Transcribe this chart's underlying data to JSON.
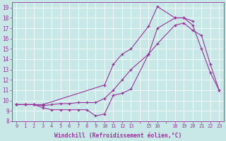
{
  "xlabel": "Windchill (Refroidissement éolien,°C)",
  "bg_color": "#c8e8e8",
  "line_color": "#993399",
  "xlim": [
    -0.5,
    23.5
  ],
  "ylim": [
    8.0,
    19.5
  ],
  "xtick_labels": [
    "0",
    "1",
    "2",
    "3",
    "4",
    "5",
    "6",
    "7",
    "8",
    "9",
    "10",
    "11",
    "12",
    "13",
    "",
    "15",
    "16",
    "",
    "18",
    "19",
    "20",
    "21",
    "22",
    "23"
  ],
  "yticks": [
    8,
    9,
    10,
    11,
    12,
    13,
    14,
    15,
    16,
    17,
    18,
    19
  ],
  "series": [
    {
      "x": [
        0,
        1,
        2,
        3,
        4,
        5,
        6,
        7,
        8,
        9,
        10,
        11,
        12,
        13,
        15,
        16,
        18,
        19,
        20,
        21,
        22,
        23
      ],
      "y": [
        9.6,
        9.6,
        9.6,
        9.3,
        9.1,
        9.1,
        9.1,
        9.1,
        9.1,
        8.5,
        8.7,
        10.5,
        10.7,
        11.1,
        14.5,
        17.0,
        18.0,
        18.0,
        17.3,
        15.0,
        12.7,
        11.0
      ]
    },
    {
      "x": [
        0,
        1,
        2,
        3,
        4,
        5,
        6,
        7,
        8,
        9,
        10,
        11,
        12,
        13,
        15,
        16,
        18,
        19,
        20,
        21,
        22,
        23
      ],
      "y": [
        9.6,
        9.6,
        9.6,
        9.5,
        9.6,
        9.7,
        9.7,
        9.8,
        9.8,
        9.8,
        10.2,
        11.0,
        12.0,
        13.0,
        14.5,
        15.5,
        17.3,
        17.5,
        16.8,
        16.3,
        13.5,
        11.0
      ]
    },
    {
      "x": [
        0,
        1,
        2,
        3,
        10,
        11,
        12,
        13,
        15,
        16,
        18,
        19,
        20
      ],
      "y": [
        9.6,
        9.6,
        9.6,
        9.6,
        11.5,
        13.5,
        14.5,
        15.0,
        17.2,
        19.1,
        18.0,
        18.0,
        17.7
      ]
    }
  ]
}
